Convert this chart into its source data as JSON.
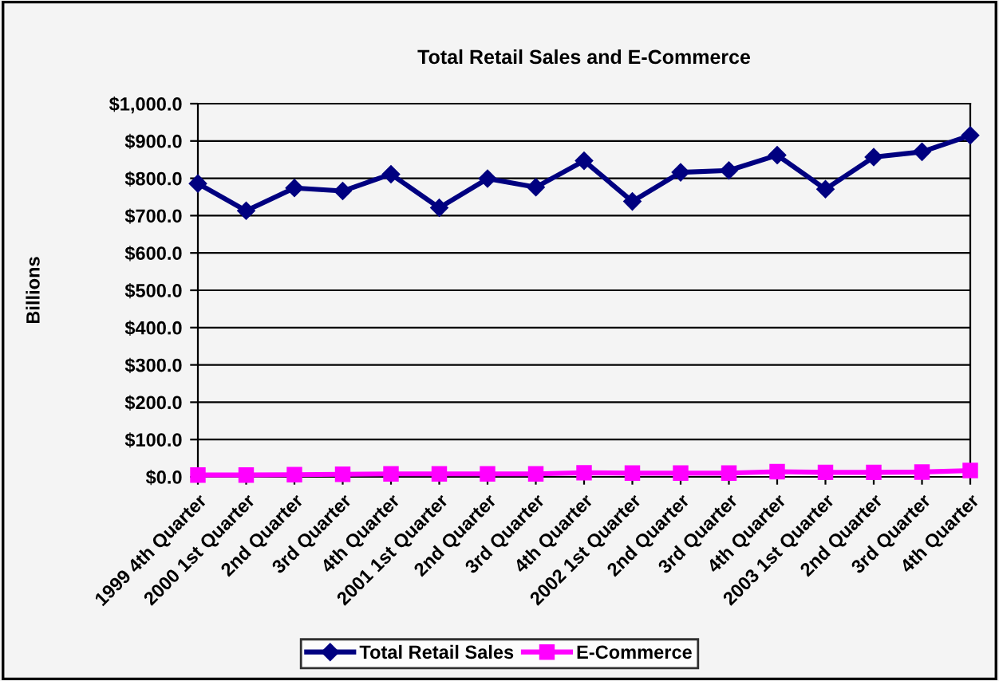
{
  "chart_data": {
    "type": "line",
    "title": "Total Retail Sales and E-Commerce",
    "ylabel": "Billions",
    "categories": [
      "1999 4th Quarter",
      "2000 1st Quarter",
      "2nd Quarter",
      "3rd Quarter",
      "4th Quarter",
      "2001 1st Quarter",
      "2nd Quarter",
      "3rd Quarter",
      "4th Quarter",
      "2002 1st Quarter",
      "2nd Quarter",
      "3rd Quarter",
      "4th Quarter",
      "2003 1st Quarter",
      "2nd Quarter",
      "3rd Quarter",
      "4th Quarter"
    ],
    "series": [
      {
        "name": "Total Retail Sales",
        "color": "#000080",
        "marker": "diamond",
        "values": [
          786,
          713,
          774,
          766,
          811,
          721,
          799,
          776,
          847,
          738,
          816,
          821,
          862,
          771,
          857,
          871,
          915
        ]
      },
      {
        "name": "E-Commerce",
        "color": "#ff00ff",
        "marker": "square",
        "values": [
          5,
          5,
          6,
          7,
          8,
          8,
          8,
          8,
          11,
          10,
          10,
          10,
          14,
          12,
          12,
          13,
          17
        ]
      }
    ],
    "ylim": [
      0,
      1000
    ],
    "yticks": [
      {
        "value": 0,
        "label": "$0.0"
      },
      {
        "value": 100,
        "label": "$100.0"
      },
      {
        "value": 200,
        "label": "$200.0"
      },
      {
        "value": 300,
        "label": "$300.0"
      },
      {
        "value": 400,
        "label": "$400.0"
      },
      {
        "value": 500,
        "label": "$500.0"
      },
      {
        "value": 600,
        "label": "$600.0"
      },
      {
        "value": 700,
        "label": "$700.0"
      },
      {
        "value": 800,
        "label": "$800.0"
      },
      {
        "value": 900,
        "label": "$900.0"
      },
      {
        "value": 1000,
        "label": "$1,000.0"
      }
    ],
    "grid": "y",
    "legend": "bottom",
    "line_style": "solid"
  }
}
